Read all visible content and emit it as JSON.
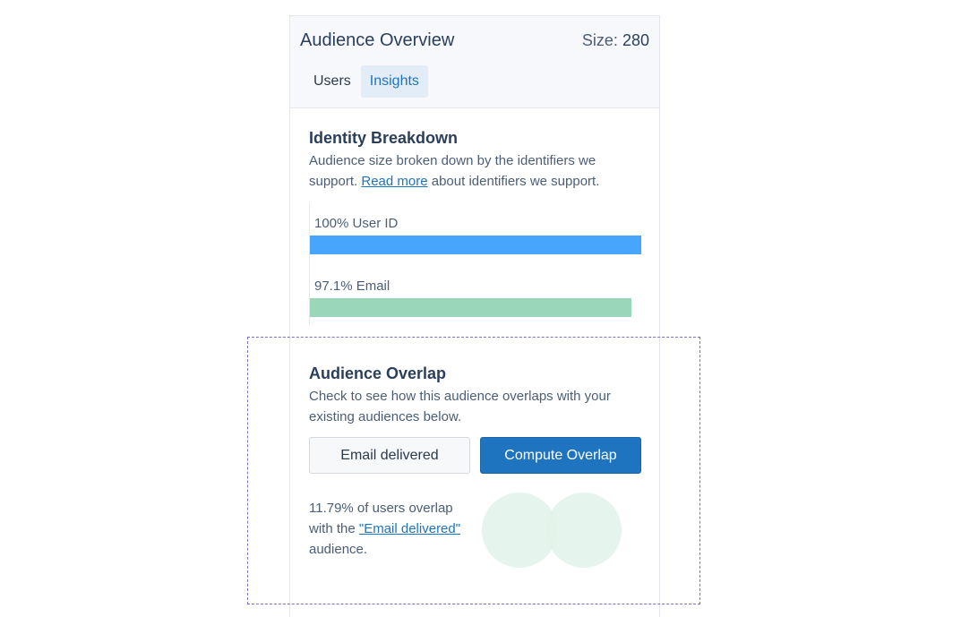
{
  "header": {
    "title": "Audience Overview",
    "size_label": "Size:",
    "size_value": "280",
    "tabs": [
      {
        "label": "Users",
        "active": false
      },
      {
        "label": "Insights",
        "active": true
      }
    ]
  },
  "identity": {
    "title": "Identity Breakdown",
    "desc_before": "Audience size broken down by the identifiers we support.",
    "read_more": "Read more",
    "desc_after": "about identifiers we support.",
    "chart_data": {
      "type": "bar",
      "categories": [
        "User ID",
        "Email"
      ],
      "values": [
        100,
        97.1
      ],
      "labels": [
        "100% User ID",
        "97.1% Email"
      ],
      "unit": "%",
      "xlim": [
        0,
        100
      ],
      "colors": [
        "#47a5fb",
        "#9ad7ba"
      ]
    }
  },
  "overlap": {
    "title": "Audience Overlap",
    "desc": "Check to see how this audience overlaps with your existing audiences below.",
    "select_label": "Email delivered",
    "compute_label": "Compute Overlap",
    "result_before": "11.79% of users overlap with the",
    "result_link": "\"Email delivered\"",
    "result_after": "audience.",
    "overlap_percent": 11.79
  },
  "colors": {
    "primary": "#1f74c0",
    "venn": "#e2f3ea",
    "dashed": "#8070c4"
  }
}
